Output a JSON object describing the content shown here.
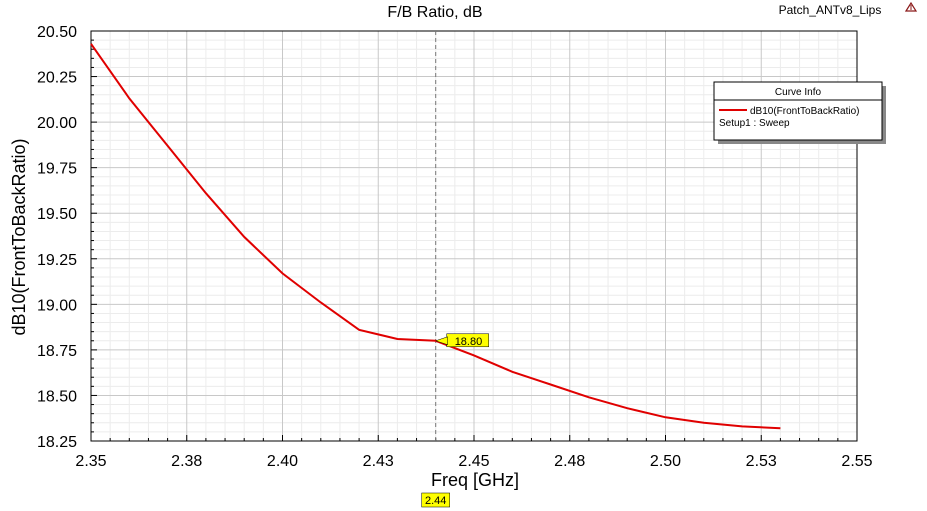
{
  "project_name": "Patch_ANTv8_Lips",
  "chart_data": {
    "type": "line",
    "title": "F/B Ratio, dB",
    "xlabel": "Freq [GHz]",
    "ylabel": "dB10(FrontToBackRatio)",
    "xlim": [
      2.35,
      2.55
    ],
    "ylim": [
      18.25,
      20.5
    ],
    "x_ticks": [
      2.35,
      2.375,
      2.4,
      2.425,
      2.45,
      2.475,
      2.5,
      2.525,
      2.55
    ],
    "x_tick_labels": [
      "2.35",
      "2.38",
      "2.40",
      "2.43",
      "2.45",
      "2.48",
      "2.50",
      "2.53",
      "2.55"
    ],
    "y_ticks": [
      18.25,
      18.5,
      18.75,
      19.0,
      19.25,
      19.5,
      19.75,
      20.0,
      20.25,
      20.5
    ],
    "y_tick_labels": [
      "18.25",
      "18.50",
      "18.75",
      "19.00",
      "19.25",
      "19.50",
      "19.75",
      "20.00",
      "20.25",
      "20.50"
    ],
    "grid": true,
    "legend": {
      "title": "Curve Info",
      "placement": "top-right",
      "entries": [
        {
          "name": "dB10(FrontToBackRatio)",
          "subtitle": "Setup1 : Sweep",
          "color": "#e00000"
        }
      ]
    },
    "series": [
      {
        "name": "dB10(FrontToBackRatio)",
        "color": "#e00000",
        "x": [
          2.35,
          2.36,
          2.37,
          2.38,
          2.39,
          2.4,
          2.41,
          2.42,
          2.43,
          2.44,
          2.45,
          2.46,
          2.47,
          2.48,
          2.49,
          2.5,
          2.51,
          2.52,
          2.53
        ],
        "y": [
          20.43,
          20.13,
          19.87,
          19.61,
          19.37,
          19.17,
          19.01,
          18.86,
          18.81,
          18.8,
          18.72,
          18.63,
          18.56,
          18.49,
          18.43,
          18.38,
          18.35,
          18.33,
          18.32
        ]
      }
    ],
    "marker": {
      "x": 2.44,
      "y": 18.8,
      "x_label": "2.44",
      "y_label": "18.80",
      "color": "#ffff00"
    }
  }
}
